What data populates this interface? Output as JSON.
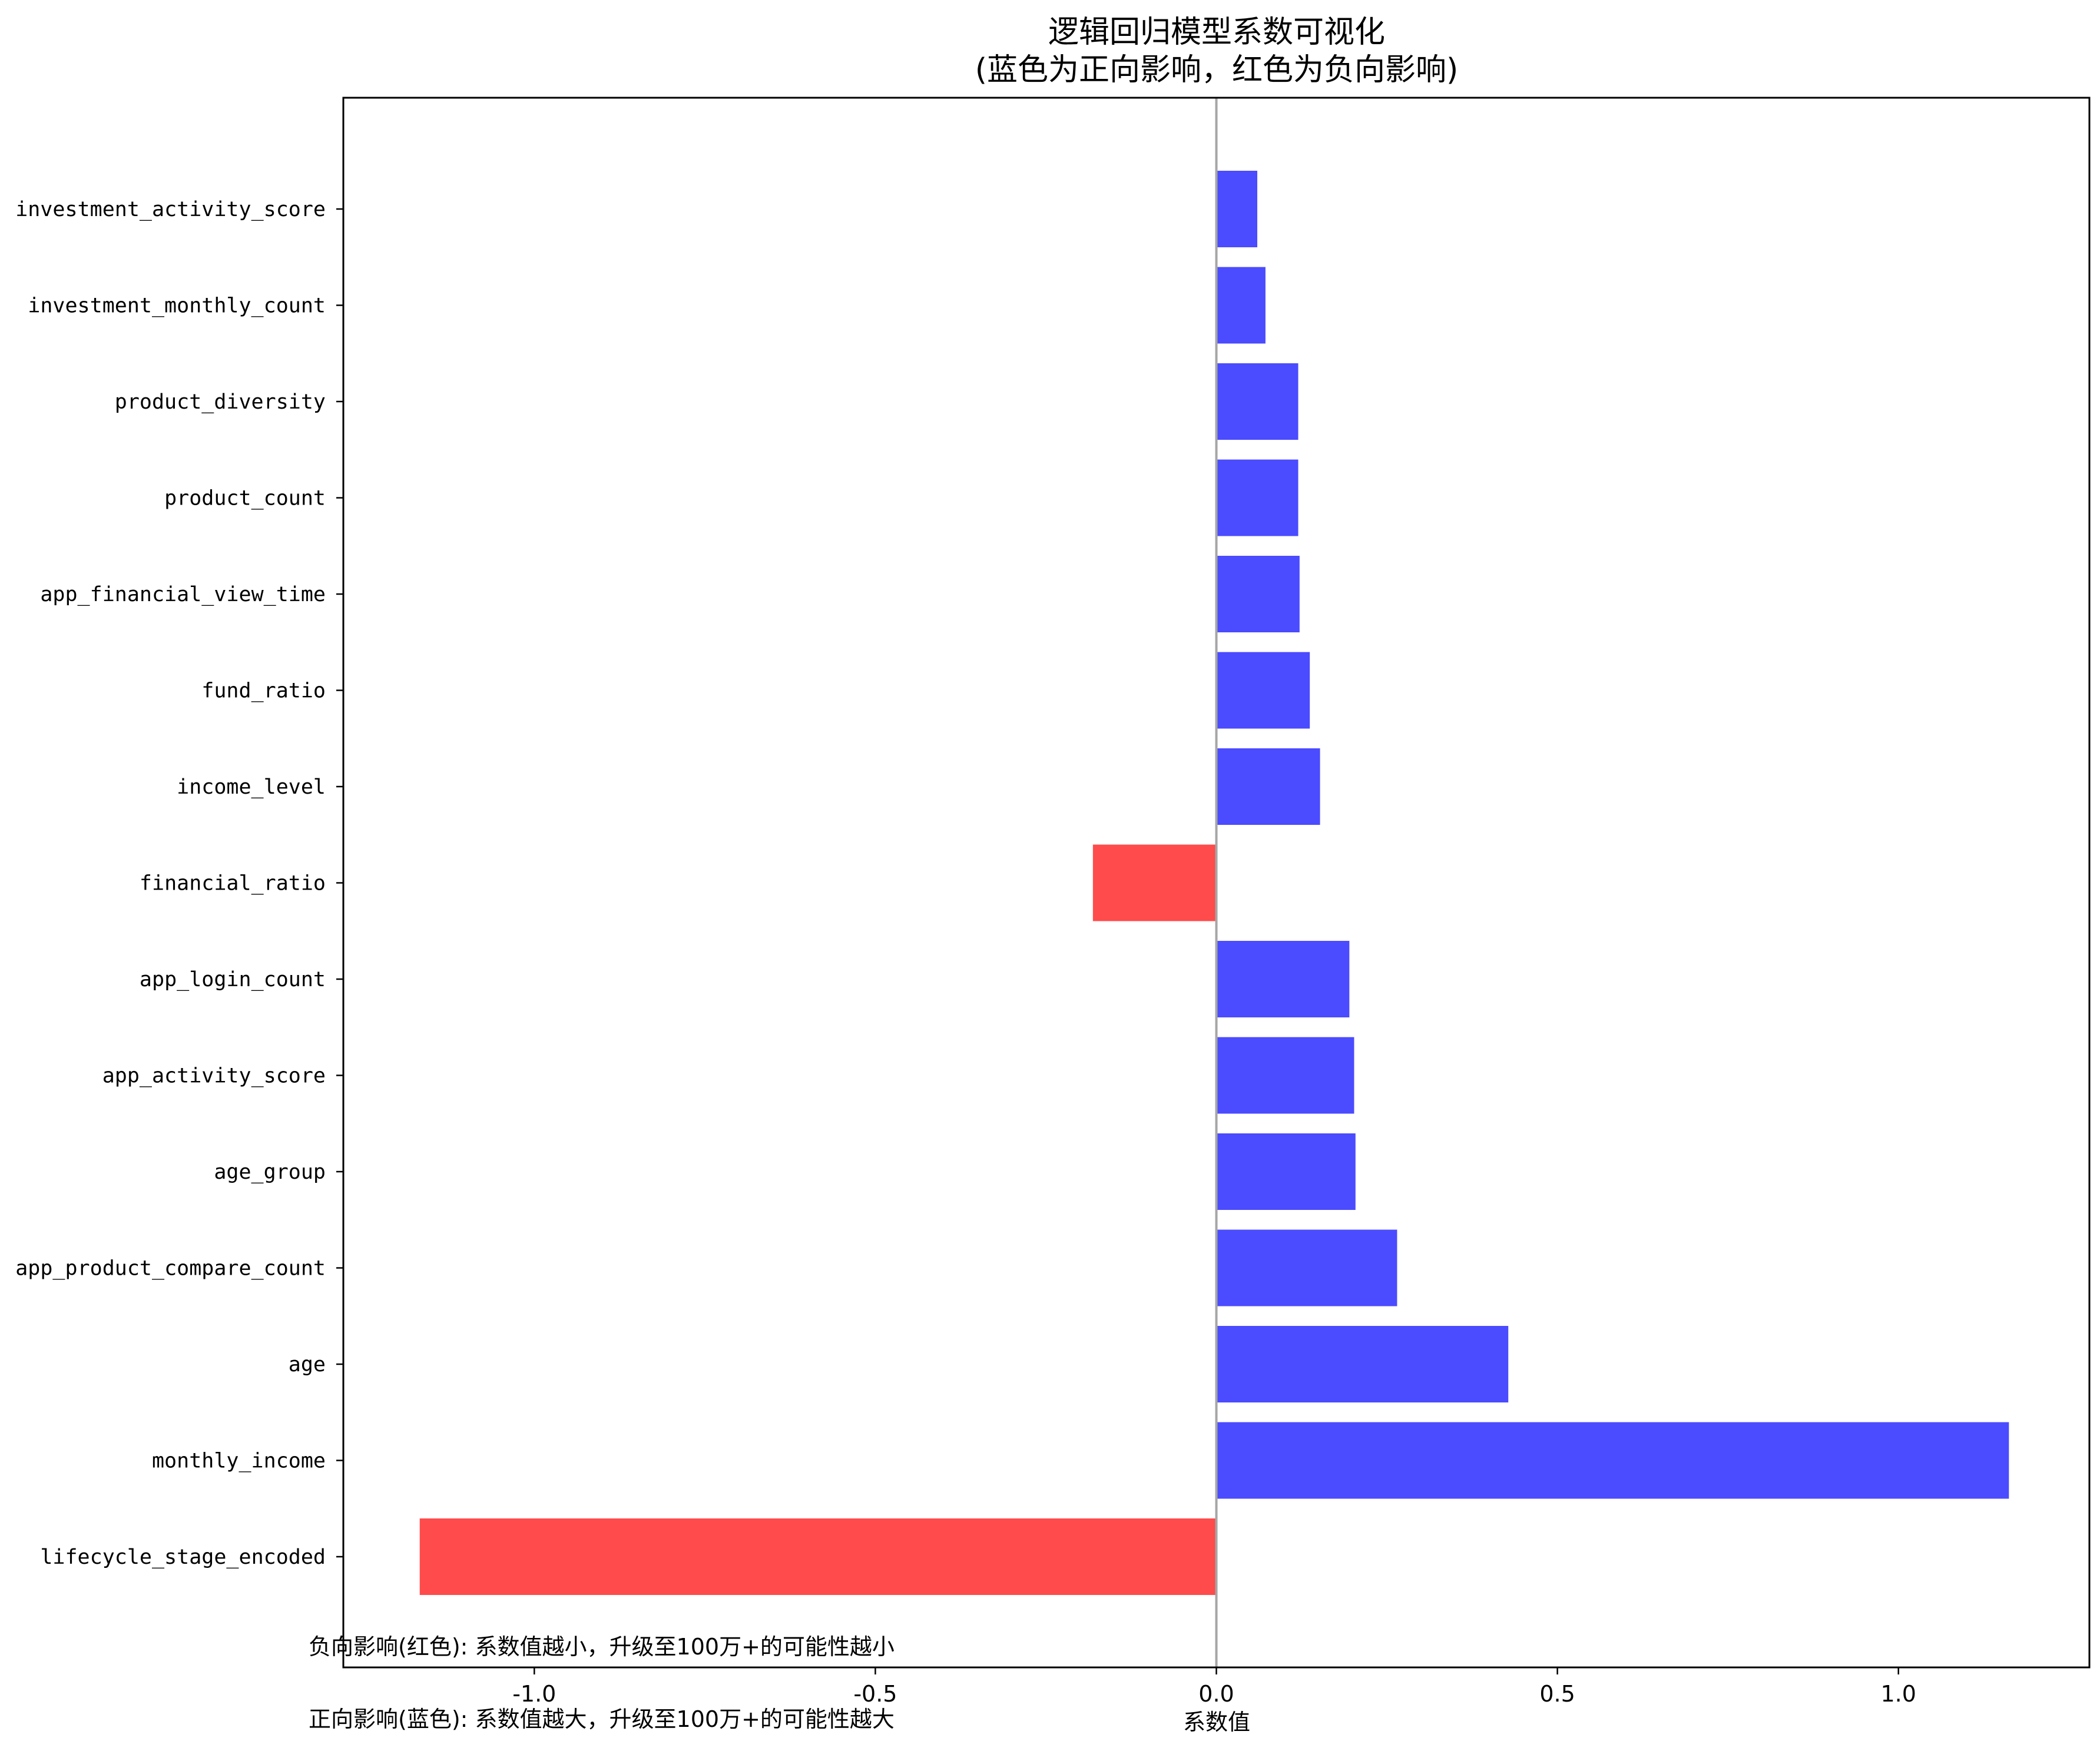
{
  "chart_data": {
    "type": "bar",
    "orientation": "horizontal",
    "title": "逻辑回归模型系数可视化",
    "subtitle": "(蓝色为正向影响，红色为负向影响)",
    "xlabel": "系数值",
    "ylabel": "",
    "xlim": [
      -1.28,
      1.28
    ],
    "xticks": [
      "-1.0",
      "-0.5",
      "0.0",
      "0.5",
      "1.0"
    ],
    "xtick_values": [
      -1.0,
      -0.5,
      0.0,
      0.5,
      1.0
    ],
    "grid": false,
    "zero_line": true,
    "positive_color": "#4b4bff",
    "negative_color": "#ff4b4b",
    "zero_line_color": "#a6a6a6",
    "categories": [
      "investment_activity_score",
      "investment_monthly_count",
      "product_diversity",
      "product_count",
      "app_financial_view_time",
      "fund_ratio",
      "income_level",
      "financial_ratio",
      "app_login_count",
      "app_activity_score",
      "age_group",
      "app_product_compare_count",
      "age",
      "monthly_income",
      "lifecycle_stage_encoded"
    ],
    "values": [
      0.06,
      0.072,
      0.12,
      0.12,
      0.122,
      0.137,
      0.152,
      -0.181,
      0.195,
      0.202,
      0.204,
      0.265,
      0.428,
      1.162,
      -1.168
    ],
    "annotations": [
      {
        "text": "负向影响(红色): 系数值越小，升级至100万+的可能性越小",
        "color": "#ff0000"
      },
      {
        "text": "正向影响(蓝色): 系数值越大，升级至100万+的可能性越大",
        "color": "#0000ff"
      }
    ]
  }
}
